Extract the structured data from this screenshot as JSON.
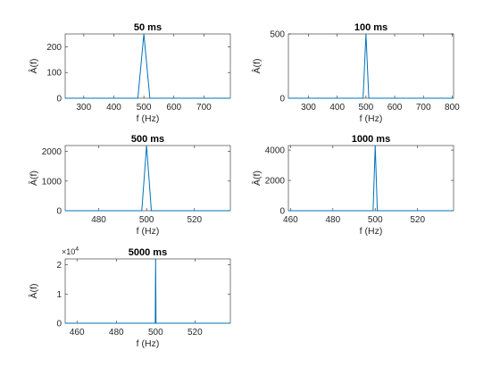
{
  "chart_data": [
    {
      "type": "line",
      "title": "50 ms",
      "xlabel": "f (Hz)",
      "ylabel": "Â(f)",
      "xlim": [
        238,
        788
      ],
      "ylim": [
        0,
        250
      ],
      "xticks": [
        300,
        400,
        500,
        600,
        700
      ],
      "yticks": [
        0,
        100,
        200
      ],
      "grid": false,
      "series": [
        {
          "color": "#0072BD",
          "x": [
            238,
            480,
            500,
            520,
            788
          ],
          "y": [
            0,
            0,
            250,
            0,
            0
          ]
        }
      ]
    },
    {
      "type": "line",
      "title": "100 ms",
      "xlabel": "f (Hz)",
      "ylabel": "Â(f)",
      "xlim": [
        230,
        805
      ],
      "ylim": [
        0,
        500
      ],
      "xticks": [
        300,
        400,
        500,
        600,
        700,
        800
      ],
      "yticks": [
        0,
        500
      ],
      "grid": false,
      "series": [
        {
          "color": "#0072BD",
          "x": [
            230,
            490,
            500,
            510,
            805
          ],
          "y": [
            0,
            0,
            500,
            0,
            0
          ]
        }
      ]
    },
    {
      "type": "line",
      "title": "500 ms",
      "xlabel": "f (Hz)",
      "ylabel": "Â(f)",
      "xlim": [
        466,
        535
      ],
      "ylim": [
        0,
        2200
      ],
      "xticks": [
        480,
        500,
        520
      ],
      "yticks": [
        0,
        1000,
        2000
      ],
      "grid": false,
      "series": [
        {
          "color": "#0072BD",
          "x": [
            466,
            498,
            500,
            502,
            535
          ],
          "y": [
            0,
            0,
            2200,
            0,
            0
          ]
        }
      ]
    },
    {
      "type": "line",
      "title": "1000 ms",
      "xlabel": "f (Hz)",
      "ylabel": "Â(f)",
      "xlim": [
        459,
        537
      ],
      "ylim": [
        0,
        4300
      ],
      "xticks": [
        460,
        480,
        500,
        520
      ],
      "yticks": [
        0,
        2000,
        4000
      ],
      "grid": false,
      "series": [
        {
          "color": "#0072BD",
          "x": [
            459,
            499,
            500,
            501,
            537
          ],
          "y": [
            0,
            0,
            4300,
            0,
            0
          ]
        }
      ]
    },
    {
      "type": "line",
      "title": "5000 ms",
      "xlabel": "f (Hz)",
      "ylabel": "Â(f)",
      "xlim": [
        454,
        538
      ],
      "ylim": [
        0,
        2.2
      ],
      "xticks": [
        460,
        480,
        500,
        520
      ],
      "yticks": [
        0,
        1,
        2
      ],
      "y_exponent_label": "×10",
      "y_exponent": "4",
      "grid": false,
      "series": [
        {
          "color": "#0072BD",
          "x": [
            454,
            499.8,
            500,
            500.2,
            538
          ],
          "y": [
            0,
            0,
            2.2,
            0,
            0
          ]
        }
      ]
    }
  ]
}
